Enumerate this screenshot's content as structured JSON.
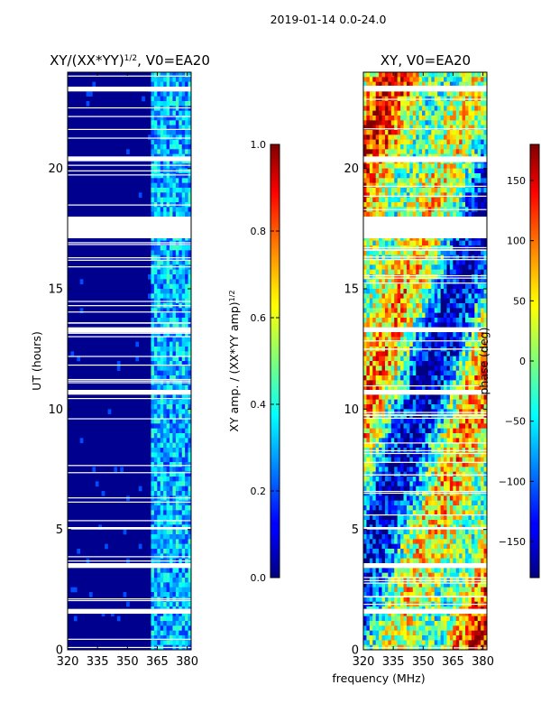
{
  "figure": {
    "suptitle": "2019-01-14 0.0-24.0",
    "xlabel": "frequency (MHz)"
  },
  "chart_data": [
    {
      "type": "heatmap",
      "title_main": "XY/(XX*YY)",
      "title_sup": "1/2",
      "title_rest": ", V0=EA20",
      "ylabel": "UT (hours)",
      "xticks": [
        320,
        335,
        350,
        365,
        380
      ],
      "yticks": [
        0,
        5,
        10,
        15,
        20
      ],
      "xlim": [
        320,
        382
      ],
      "ylim": [
        0,
        24
      ],
      "colorbar": {
        "label": "XY amp. / (XX*YY amp)",
        "label_sup": "1/2",
        "ticks": [
          "0.0",
          "0.2",
          "0.4",
          "0.6",
          "0.8",
          "1.0"
        ],
        "range": [
          0,
          1
        ]
      },
      "active_band_mhz": [
        362,
        382
      ],
      "blank_hours": [
        [
          17.1,
          18.0
        ],
        [
          20.3,
          20.5
        ],
        [
          23.2,
          23.4
        ],
        [
          1.5,
          1.7
        ],
        [
          3.4,
          3.6
        ],
        [
          13.2,
          13.4
        ],
        [
          10.6,
          10.8
        ],
        [
          5.0,
          5.1
        ]
      ]
    },
    {
      "type": "heatmap",
      "title": "XY, V0=EA20",
      "xticks": [
        320,
        335,
        350,
        365,
        380
      ],
      "yticks": [
        0,
        5,
        10,
        15,
        20
      ],
      "xlim": [
        320,
        382
      ],
      "ylim": [
        0,
        24
      ],
      "colorbar": {
        "label": "phase (deg)",
        "ticks": [
          "150",
          "100",
          "50",
          "0",
          "−50",
          "−100",
          "−150"
        ],
        "tick_values": [
          150,
          100,
          50,
          0,
          -50,
          -100,
          -150
        ],
        "range": [
          -180,
          180
        ]
      },
      "blank_hours": [
        [
          17.1,
          18.0
        ],
        [
          20.3,
          20.5
        ],
        [
          23.2,
          23.4
        ],
        [
          1.5,
          1.7
        ],
        [
          3.4,
          3.6
        ],
        [
          13.2,
          13.4
        ],
        [
          10.6,
          10.8
        ],
        [
          5.0,
          5.1
        ]
      ]
    }
  ],
  "colors": {
    "low": "#00008f",
    "high": "#800000"
  }
}
